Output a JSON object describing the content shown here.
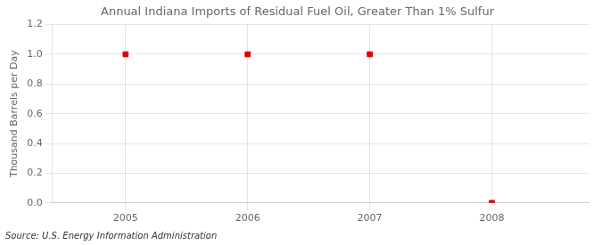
{
  "chart_data": {
    "type": "scatter",
    "title": "Annual Indiana Imports of Residual Fuel Oil, Greater Than 1% Sulfur",
    "y_label": "Thousand Barrels per Day",
    "source": "Source: U.S. Energy Information Administration",
    "x": [
      2005,
      2006,
      2007,
      2008
    ],
    "values": [
      1.0,
      1.0,
      1.0,
      0.0
    ],
    "color": "#dd0000",
    "marker": "square",
    "xlim": [
      2004.4,
      2008.8
    ],
    "xticks": [
      2005,
      2006,
      2007,
      2008
    ],
    "ylim": [
      0.0,
      1.2
    ],
    "yticks": [
      {
        "value": 0.0,
        "label": "0.0"
      },
      0.2,
      0.4,
      0.6,
      0.8,
      {
        "value": 1.0,
        "label": "1.0"
      },
      1.2
    ],
    "grid": true
  }
}
